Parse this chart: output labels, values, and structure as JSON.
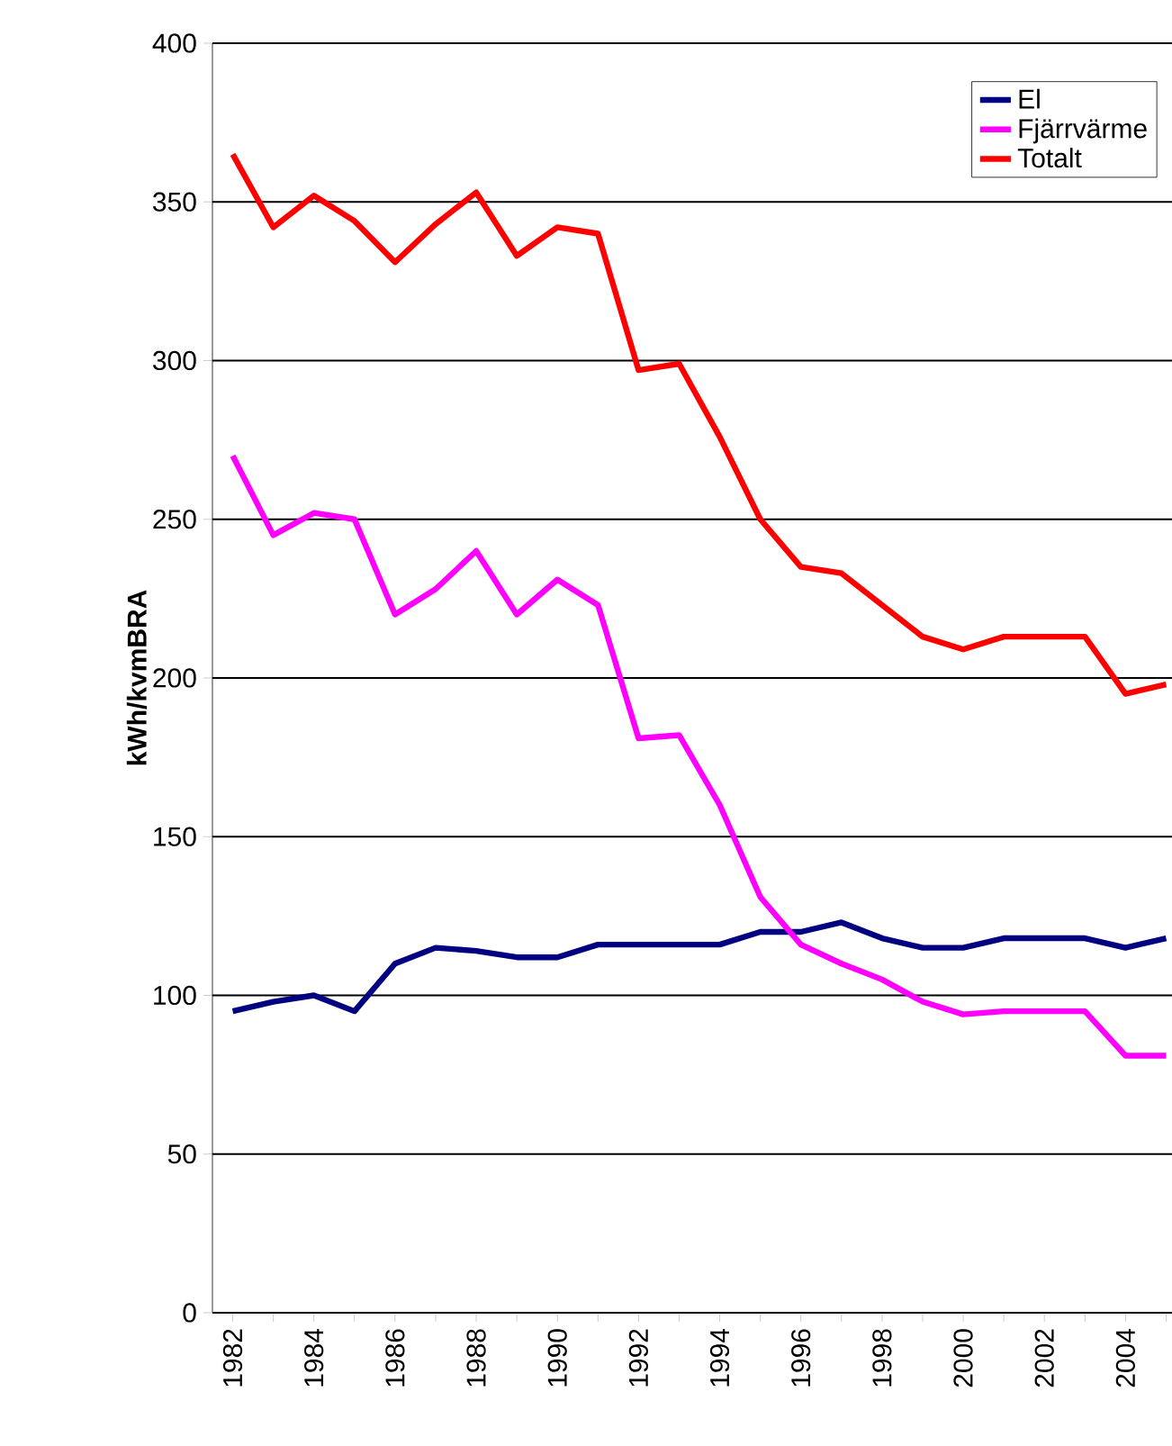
{
  "chart_data": {
    "type": "line",
    "ylabel": "kWh/kvmBRA",
    "categories": [
      "1982",
      null,
      "1984",
      null,
      "1986",
      null,
      "1988",
      null,
      "1990",
      null,
      "1992",
      null,
      "1994",
      null,
      "1996",
      null,
      "1998",
      null,
      "2000",
      null,
      "2002",
      null,
      "2004",
      null
    ],
    "series": [
      {
        "name": "El",
        "color": "#000080",
        "values": [
          95,
          98,
          100,
          95,
          110,
          115,
          114,
          112,
          112,
          116,
          116,
          116,
          116,
          120,
          120,
          123,
          118,
          115,
          115,
          118,
          118,
          118,
          115,
          118
        ]
      },
      {
        "name": "Fjärrvärme",
        "color": "#ff00ff",
        "values": [
          270,
          245,
          252,
          250,
          220,
          228,
          240,
          220,
          231,
          223,
          181,
          182,
          160,
          131,
          116,
          110,
          105,
          98,
          94,
          95,
          95,
          95,
          81,
          81
        ]
      },
      {
        "name": "Totalt",
        "color": "#ff0000",
        "values": [
          365,
          342,
          352,
          344,
          331,
          343,
          353,
          333,
          342,
          340,
          297,
          299,
          276,
          250,
          235,
          233,
          223,
          213,
          209,
          213,
          213,
          213,
          195,
          198
        ]
      }
    ],
    "ylim": [
      0,
      400
    ],
    "yticks": [
      0,
      50,
      100,
      150,
      200,
      250,
      300,
      350,
      400
    ],
    "grid": "y",
    "legend": "top right",
    "marker": "none",
    "line_style": "solid"
  }
}
